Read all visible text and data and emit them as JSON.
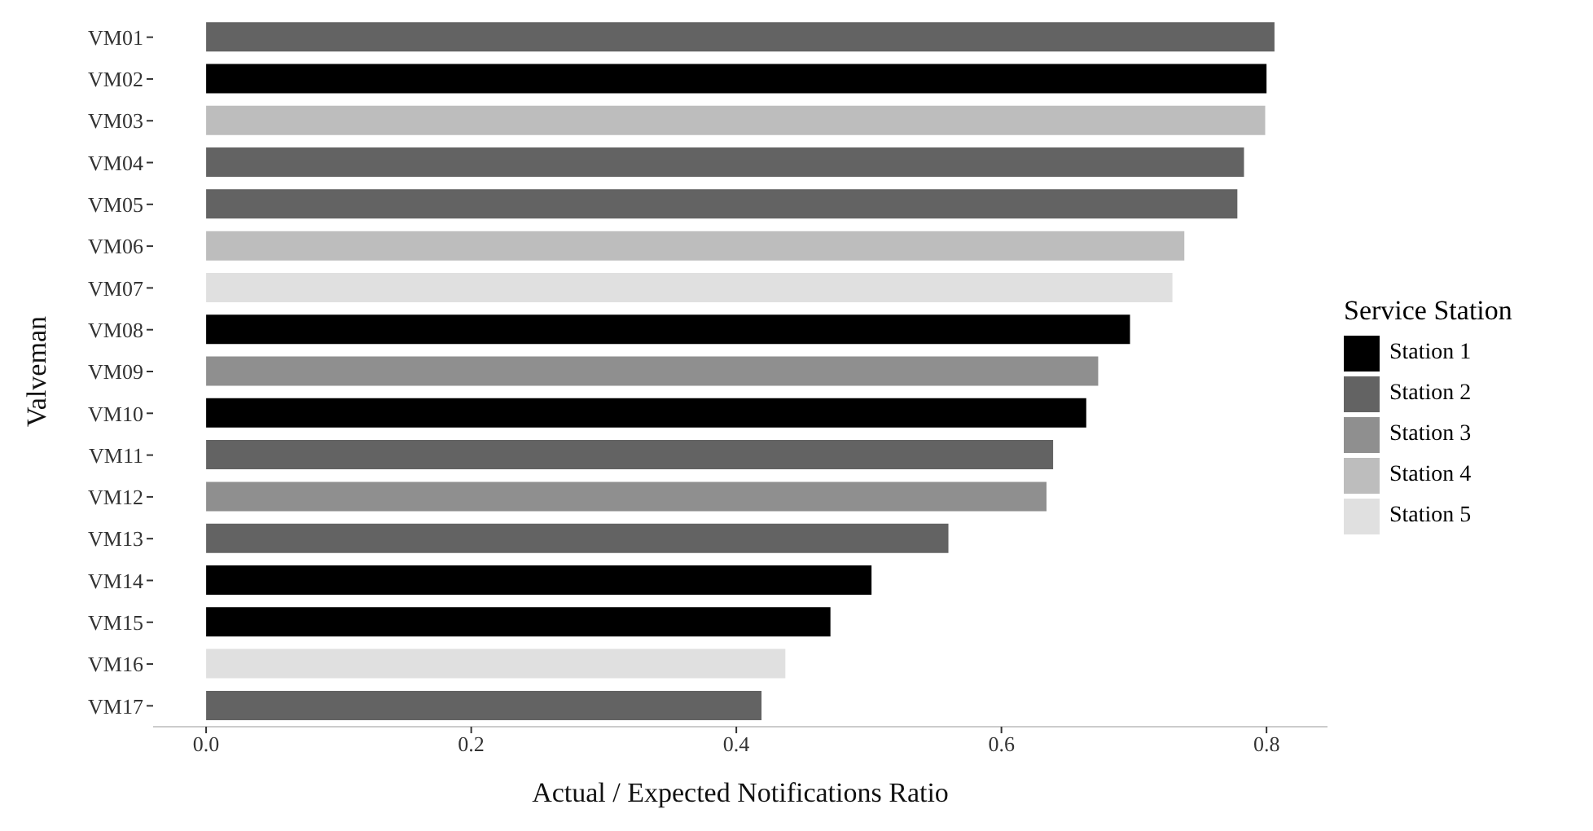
{
  "chart_data": {
    "type": "bar",
    "orientation": "horizontal",
    "stacked": true,
    "xlabel": "Actual / Expected Notifications Ratio",
    "ylabel": "Valveman",
    "legend_title": "Service Station",
    "legend": "right",
    "grid": false,
    "categories": [
      "VM01",
      "VM02",
      "VM03",
      "VM04",
      "VM05",
      "VM06",
      "VM07",
      "VM08",
      "VM09",
      "VM10",
      "VM11",
      "VM12",
      "VM13",
      "VM14",
      "VM15",
      "VM16",
      "VM17"
    ],
    "xlim": [
      -0.04,
      0.846
    ],
    "xticks": [
      {
        "value": 0,
        "label": "0.0"
      },
      0.2,
      0.4,
      0.6,
      0.8
    ],
    "series": [
      {
        "name": "Station 1",
        "color": "#000000",
        "values": [
          null,
          0.8,
          null,
          null,
          null,
          null,
          null,
          0.697,
          null,
          0.664,
          null,
          null,
          null,
          0.502,
          0.471,
          null,
          null
        ]
      },
      {
        "name": "Station 2",
        "color": "#636363",
        "values": [
          0.806,
          null,
          null,
          0.783,
          0.778,
          null,
          null,
          null,
          null,
          null,
          0.639,
          null,
          0.56,
          null,
          null,
          null,
          0.419
        ]
      },
      {
        "name": "Station 3",
        "color": "#8f8f8f",
        "values": [
          null,
          null,
          null,
          null,
          null,
          null,
          null,
          null,
          0.673,
          null,
          null,
          0.634,
          null,
          null,
          null,
          null,
          null
        ]
      },
      {
        "name": "Station 4",
        "color": "#bdbdbd",
        "values": [
          null,
          null,
          0.799,
          null,
          null,
          0.738,
          null,
          null,
          null,
          null,
          null,
          null,
          null,
          null,
          null,
          null,
          null
        ]
      },
      {
        "name": "Station 5",
        "color": "#e0e0e0",
        "values": [
          null,
          null,
          null,
          null,
          null,
          null,
          0.729,
          null,
          null,
          null,
          null,
          null,
          null,
          null,
          null,
          0.437,
          null
        ]
      }
    ]
  }
}
